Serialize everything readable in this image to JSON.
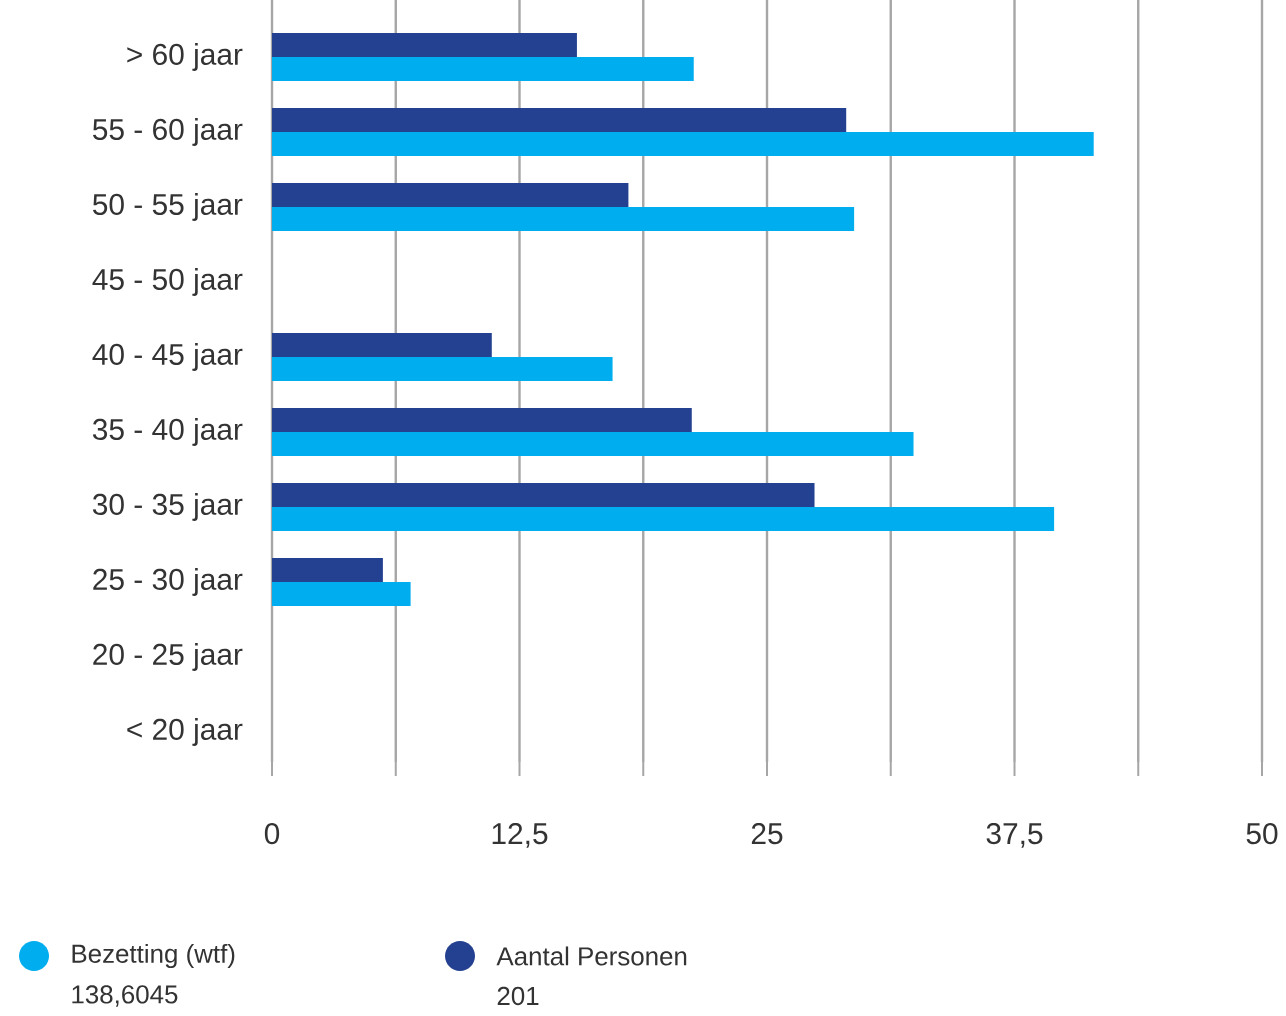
{
  "chart_data": {
    "type": "bar",
    "orientation": "horizontal",
    "categories": [
      "> 60 jaar",
      "55 - 60 jaar",
      "50 - 55 jaar",
      "45 - 50 jaar",
      "40 - 45 jaar",
      "35 - 40 jaar",
      "30 - 35 jaar",
      "25 - 30 jaar",
      "20 - 25 jaar",
      "< 20 jaar"
    ],
    "series": [
      {
        "name": "Bezetting (wtf)",
        "color": "#00aeef",
        "values": [
          21.3,
          41.5,
          29.4,
          0,
          17.2,
          32.4,
          39.5,
          7.0,
          0,
          0
        ]
      },
      {
        "name": "Aantal Personen",
        "color": "#244191",
        "values": [
          15.4,
          29.0,
          18.0,
          0,
          11.1,
          21.2,
          27.4,
          5.6,
          0,
          0
        ]
      }
    ],
    "xlim": [
      0,
      50
    ],
    "xticks": [
      0,
      {
        "value": 6.25,
        "label": null
      },
      {
        "value": 12.5,
        "label": "12,5"
      },
      {
        "value": 18.75,
        "label": null
      },
      25,
      {
        "value": 31.25,
        "label": null
      },
      {
        "value": 37.5,
        "label": "37,5"
      },
      {
        "value": 43.75,
        "label": null
      },
      50
    ],
    "grid": "x",
    "legend": "bottom left",
    "annotations": [
      "138,6045",
      "201"
    ]
  }
}
